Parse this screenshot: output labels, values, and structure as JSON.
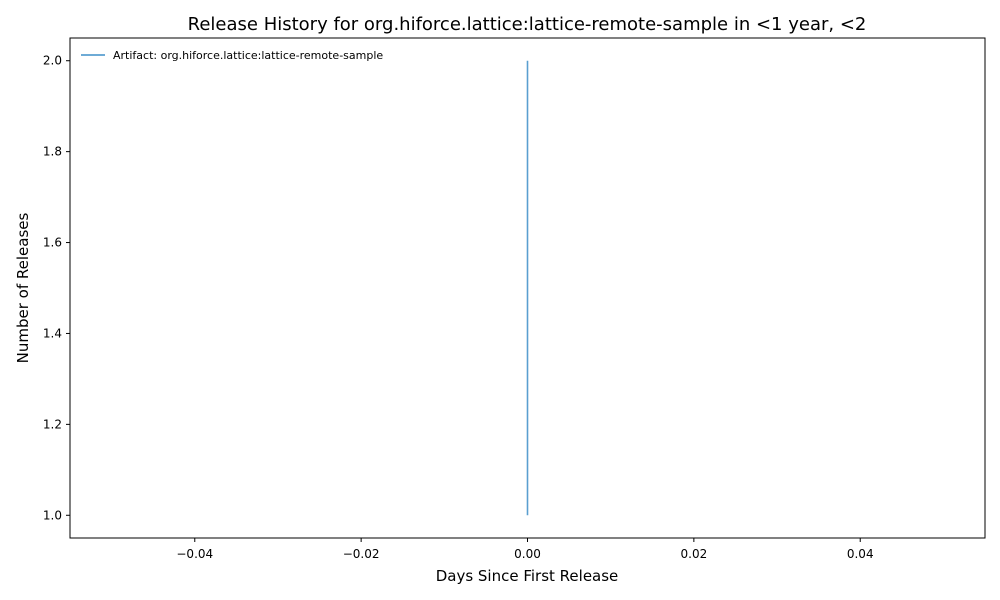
{
  "chart_data": {
    "type": "line",
    "title": "Release History for org.hiforce.lattice:lattice-remote-sample in <1 year, <2",
    "xlabel": "Days Since First Release",
    "ylabel": "Number of Releases",
    "xlim": [
      -0.055,
      0.055
    ],
    "ylim": [
      0.95,
      2.05
    ],
    "xticks": [
      -0.04,
      -0.02,
      0.0,
      0.02,
      0.04
    ],
    "xtick_labels": [
      "−0.04",
      "−0.02",
      "0.00",
      "0.02",
      "0.04"
    ],
    "yticks": [
      1.0,
      1.2,
      1.4,
      1.6,
      1.8,
      2.0
    ],
    "ytick_labels": [
      "1.0",
      "1.2",
      "1.4",
      "1.6",
      "1.8",
      "2.0"
    ],
    "grid": false,
    "legend_position": "top-left",
    "series": [
      {
        "name": "Artifact: org.hiforce.lattice:lattice-remote-sample",
        "color": "#5a9fd0",
        "x": [
          0,
          0
        ],
        "y": [
          1,
          2
        ]
      }
    ]
  }
}
